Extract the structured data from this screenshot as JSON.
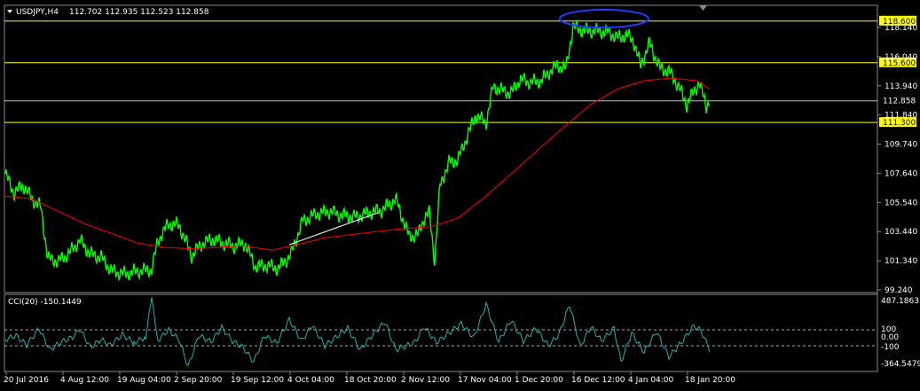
{
  "header": {
    "symbol_text": "USDJPY,H4",
    "ohlc_text": "112.702 112.935 112.523 112.858"
  },
  "indicator": {
    "label": "CCI(20) -150.1449"
  },
  "colors": {
    "background": "#000000",
    "price_line": "#00ff00",
    "moving_average": "#ff0000",
    "cci_line": "#20b2aa",
    "horizontal_levels": "#ffff00",
    "current_price_line": "#c0c0c0",
    "trend_segment": "#ffffff",
    "highlight_ellipse": "#1e3cff",
    "axis_text": "#ffffff"
  },
  "icons": {
    "menu": "triangle-down-icon",
    "period_marker": "triangle-down-icon"
  },
  "chart_data": {
    "type": "line",
    "instrument": "USDJPY",
    "timeframe": "H4",
    "x_labels": [
      "20 Jul 2016",
      "4 Aug 12:00",
      "19 Aug 04:00",
      "2 Sep 20:00",
      "19 Sep 12:00",
      "4 Oct 04:00",
      "18 Oct 20:00",
      "2 Nov 12:00",
      "17 Nov 04:00",
      "1 Dec 20:00",
      "16 Dec 12:00",
      "4 Jan 04:00",
      "18 Jan 20:00"
    ],
    "y_ticks": [
      "118.140",
      "116.040",
      "113.940",
      "111.840",
      "109.740",
      "107.640",
      "105.540",
      "103.440",
      "101.340",
      "99.240"
    ],
    "y_range": [
      99.24,
      120.0
    ],
    "horizontal_levels": [
      {
        "value": 118.6,
        "label": "118.600"
      },
      {
        "value": 115.6,
        "label": "115.600"
      },
      {
        "value": 111.3,
        "label": "111.300"
      }
    ],
    "current_price": {
      "value": 112.858,
      "label": "112.858"
    },
    "series": [
      {
        "values": [
          [
            0,
            107.6
          ],
          [
            10,
            106.2
          ],
          [
            20,
            106.8
          ],
          [
            30,
            105.8
          ],
          [
            40,
            105.2
          ],
          [
            48,
            101.5
          ],
          [
            60,
            101.3
          ],
          [
            72,
            101.9
          ],
          [
            84,
            102.8
          ],
          [
            96,
            101.8
          ],
          [
            108,
            101.6
          ],
          [
            120,
            100.6
          ],
          [
            134,
            100.4
          ],
          [
            150,
            100.6
          ],
          [
            165,
            100.7
          ],
          [
            172,
            102.8
          ],
          [
            184,
            104.0
          ],
          [
            196,
            103.9
          ],
          [
            210,
            101.7
          ],
          [
            222,
            102.6
          ],
          [
            234,
            102.9
          ],
          [
            246,
            102.6
          ],
          [
            258,
            102.4
          ],
          [
            270,
            102.6
          ],
          [
            282,
            100.9
          ],
          [
            295,
            101.0
          ],
          [
            308,
            100.8
          ],
          [
            322,
            101.8
          ],
          [
            335,
            104.2
          ],
          [
            350,
            104.7
          ],
          [
            365,
            104.9
          ],
          [
            380,
            104.6
          ],
          [
            395,
            104.5
          ],
          [
            410,
            104.8
          ],
          [
            425,
            105.0
          ],
          [
            440,
            105.8
          ],
          [
            455,
            103.1
          ],
          [
            465,
            103.2
          ],
          [
            472,
            104.4
          ],
          [
            478,
            104.8
          ],
          [
            484,
            101.3
          ],
          [
            490,
            106.8
          ],
          [
            500,
            108.4
          ],
          [
            510,
            108.6
          ],
          [
            520,
            110.2
          ],
          [
            530,
            111.8
          ],
          [
            542,
            111.3
          ],
          [
            550,
            113.9
          ],
          [
            560,
            113.6
          ],
          [
            570,
            113.4
          ],
          [
            580,
            114.4
          ],
          [
            592,
            114.2
          ],
          [
            604,
            114.3
          ],
          [
            614,
            115.0
          ],
          [
            622,
            115.4
          ],
          [
            632,
            115.2
          ],
          [
            640,
            118.2
          ],
          [
            652,
            117.9
          ],
          [
            665,
            117.9
          ],
          [
            680,
            117.8
          ],
          [
            690,
            117.4
          ],
          [
            700,
            117.6
          ],
          [
            708,
            117.2
          ],
          [
            716,
            115.4
          ],
          [
            726,
            117.0
          ],
          [
            738,
            115.2
          ],
          [
            748,
            115.0
          ],
          [
            758,
            114.0
          ],
          [
            768,
            112.6
          ],
          [
            776,
            113.5
          ],
          [
            782,
            114.2
          ],
          [
            790,
            112.5
          ],
          [
            794,
            112.9
          ]
        ]
      },
      {
        "values": [
          [
            0,
            106.0
          ],
          [
            30,
            105.8
          ],
          [
            60,
            104.9
          ],
          [
            90,
            104.0
          ],
          [
            120,
            103.3
          ],
          [
            150,
            102.6
          ],
          [
            180,
            102.3
          ],
          [
            210,
            102.2
          ],
          [
            240,
            102.3
          ],
          [
            270,
            102.4
          ],
          [
            300,
            102.1
          ],
          [
            330,
            102.5
          ],
          [
            360,
            103.0
          ],
          [
            400,
            103.3
          ],
          [
            440,
            103.6
          ],
          [
            480,
            103.8
          ],
          [
            510,
            104.4
          ],
          [
            540,
            105.9
          ],
          [
            570,
            107.6
          ],
          [
            600,
            109.3
          ],
          [
            630,
            111.0
          ],
          [
            660,
            112.6
          ],
          [
            690,
            113.7
          ],
          [
            720,
            114.3
          ],
          [
            750,
            114.5
          ],
          [
            780,
            114.3
          ],
          [
            794,
            113.7
          ]
        ]
      },
      {
        "values": [
          [
            0,
            -20
          ],
          [
            12,
            30
          ],
          [
            24,
            -90
          ],
          [
            38,
            120
          ],
          [
            50,
            -150
          ],
          [
            62,
            -60
          ],
          [
            76,
            10
          ],
          [
            84,
            110
          ],
          [
            96,
            -120
          ],
          [
            108,
            -20
          ],
          [
            118,
            -95
          ],
          [
            132,
            40
          ],
          [
            145,
            -60
          ],
          [
            158,
            10
          ],
          [
            165,
            487
          ],
          [
            172,
            -30
          ],
          [
            184,
            100
          ],
          [
            196,
            -25
          ],
          [
            206,
            -364
          ],
          [
            218,
            30
          ],
          [
            232,
            -50
          ],
          [
            244,
            130
          ],
          [
            256,
            -40
          ],
          [
            268,
            -120
          ],
          [
            280,
            -300
          ],
          [
            292,
            30
          ],
          [
            306,
            -70
          ],
          [
            320,
            230
          ],
          [
            334,
            -40
          ],
          [
            346,
            160
          ],
          [
            360,
            -100
          ],
          [
            374,
            20
          ],
          [
            386,
            120
          ],
          [
            400,
            -150
          ],
          [
            414,
            40
          ],
          [
            428,
            200
          ],
          [
            440,
            -150
          ],
          [
            452,
            -100
          ],
          [
            462,
            -50
          ],
          [
            472,
            140
          ],
          [
            486,
            -60
          ],
          [
            500,
            60
          ],
          [
            514,
            180
          ],
          [
            528,
            0
          ],
          [
            542,
            420
          ],
          [
            556,
            -50
          ],
          [
            570,
            220
          ],
          [
            584,
            -40
          ],
          [
            598,
            120
          ],
          [
            612,
            -100
          ],
          [
            624,
            40
          ],
          [
            636,
            420
          ],
          [
            648,
            -110
          ],
          [
            660,
            140
          ],
          [
            672,
            -40
          ],
          [
            686,
            120
          ],
          [
            694,
            -300
          ],
          [
            706,
            60
          ],
          [
            720,
            -180
          ],
          [
            734,
            80
          ],
          [
            748,
            -240
          ],
          [
            762,
            -60
          ],
          [
            776,
            150
          ],
          [
            784,
            90
          ],
          [
            794,
            -150
          ]
        ]
      }
    ]
  }
}
